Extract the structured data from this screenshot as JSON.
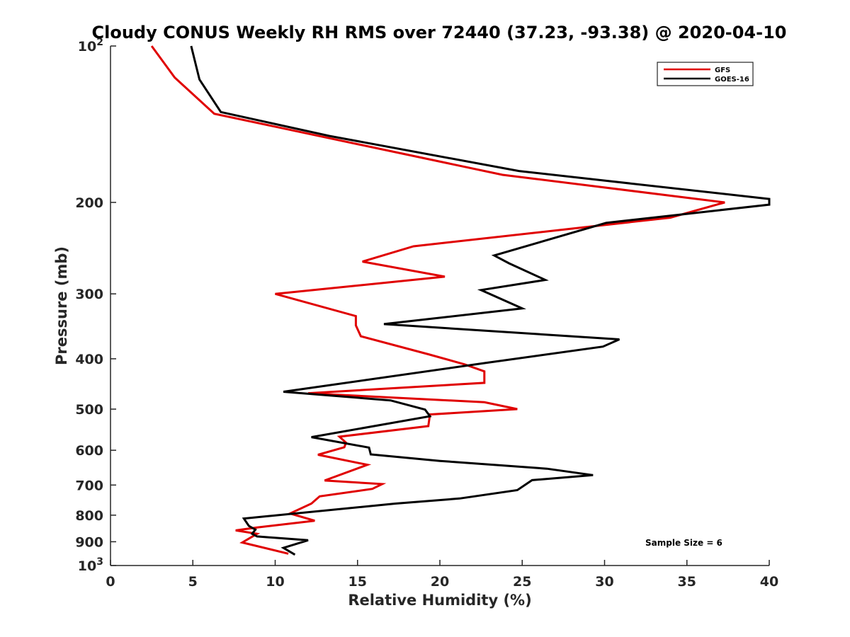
{
  "chart_data": {
    "type": "line",
    "title": "Cloudy CONUS Weekly RH RMS over 72440 (37.23, -93.38) @ 2020-04-10",
    "xlabel": "Relative Humidity (%)",
    "ylabel": "Pressure (mb)",
    "xlim": [
      0,
      40
    ],
    "ylim": [
      100,
      1000
    ],
    "y_scale": "log",
    "y_reversed": true,
    "grid": false,
    "legend_position": "top-right",
    "x_ticks": [
      0,
      5,
      10,
      15,
      20,
      25,
      30,
      35,
      40
    ],
    "y_ticks": [
      {
        "value": 100,
        "base": "10",
        "exp": "2"
      },
      {
        "value": 200,
        "label": "200"
      },
      {
        "value": 300,
        "label": "300"
      },
      {
        "value": 400,
        "label": "400"
      },
      {
        "value": 500,
        "label": "500"
      },
      {
        "value": 600,
        "label": "600"
      },
      {
        "value": 700,
        "label": "700"
      },
      {
        "value": 800,
        "label": "800"
      },
      {
        "value": 900,
        "label": "900"
      },
      {
        "value": 1000,
        "base": "10",
        "exp": "3"
      }
    ],
    "series": [
      {
        "name": "GFS",
        "color": "#e00000",
        "points": [
          {
            "x": 2.5,
            "p": 100
          },
          {
            "x": 3.9,
            "p": 115
          },
          {
            "x": 6.3,
            "p": 135
          },
          {
            "x": 13.1,
            "p": 150
          },
          {
            "x": 23.8,
            "p": 177
          },
          {
            "x": 37.3,
            "p": 200
          },
          {
            "x": 34.0,
            "p": 214
          },
          {
            "x": 18.4,
            "p": 243
          },
          {
            "x": 15.3,
            "p": 260
          },
          {
            "x": 20.3,
            "p": 278
          },
          {
            "x": 10.0,
            "p": 300
          },
          {
            "x": 14.9,
            "p": 331
          },
          {
            "x": 14.9,
            "p": 345
          },
          {
            "x": 15.2,
            "p": 362
          },
          {
            "x": 19.3,
            "p": 392
          },
          {
            "x": 21.5,
            "p": 410
          },
          {
            "x": 22.7,
            "p": 423
          },
          {
            "x": 22.7,
            "p": 445
          },
          {
            "x": 12.0,
            "p": 466
          },
          {
            "x": 22.7,
            "p": 485
          },
          {
            "x": 24.7,
            "p": 500
          },
          {
            "x": 19.4,
            "p": 512
          },
          {
            "x": 19.3,
            "p": 539
          },
          {
            "x": 13.9,
            "p": 565
          },
          {
            "x": 14.3,
            "p": 580
          },
          {
            "x": 14.2,
            "p": 592
          },
          {
            "x": 12.6,
            "p": 612
          },
          {
            "x": 15.6,
            "p": 640
          },
          {
            "x": 13.0,
            "p": 686
          },
          {
            "x": 16.5,
            "p": 697
          },
          {
            "x": 15.9,
            "p": 712
          },
          {
            "x": 12.7,
            "p": 736
          },
          {
            "x": 12.2,
            "p": 760
          },
          {
            "x": 10.9,
            "p": 794
          },
          {
            "x": 12.4,
            "p": 820
          },
          {
            "x": 8.9,
            "p": 845
          },
          {
            "x": 7.6,
            "p": 856
          },
          {
            "x": 8.9,
            "p": 869
          },
          {
            "x": 8.0,
            "p": 903
          },
          {
            "x": 10.8,
            "p": 949
          }
        ]
      },
      {
        "name": "GOES-16",
        "color": "#000000",
        "points": [
          {
            "x": 4.9,
            "p": 100
          },
          {
            "x": 5.4,
            "p": 116
          },
          {
            "x": 6.7,
            "p": 134
          },
          {
            "x": 13.3,
            "p": 149
          },
          {
            "x": 24.8,
            "p": 174
          },
          {
            "x": 40.0,
            "p": 197
          },
          {
            "x": 40.0,
            "p": 202
          },
          {
            "x": 30.1,
            "p": 219
          },
          {
            "x": 23.3,
            "p": 253
          },
          {
            "x": 24.2,
            "p": 262
          },
          {
            "x": 26.4,
            "p": 282
          },
          {
            "x": 22.5,
            "p": 295
          },
          {
            "x": 25.0,
            "p": 320
          },
          {
            "x": 16.6,
            "p": 343
          },
          {
            "x": 30.9,
            "p": 367
          },
          {
            "x": 29.9,
            "p": 379
          },
          {
            "x": 22.9,
            "p": 407
          },
          {
            "x": 10.5,
            "p": 463
          },
          {
            "x": 17.0,
            "p": 481
          },
          {
            "x": 19.1,
            "p": 501
          },
          {
            "x": 19.4,
            "p": 516
          },
          {
            "x": 12.2,
            "p": 566
          },
          {
            "x": 15.7,
            "p": 593
          },
          {
            "x": 15.8,
            "p": 611
          },
          {
            "x": 20.0,
            "p": 629
          },
          {
            "x": 26.5,
            "p": 651
          },
          {
            "x": 29.3,
            "p": 670
          },
          {
            "x": 25.6,
            "p": 685
          },
          {
            "x": 24.7,
            "p": 716
          },
          {
            "x": 21.2,
            "p": 743
          },
          {
            "x": 17.3,
            "p": 760
          },
          {
            "x": 8.1,
            "p": 812
          },
          {
            "x": 8.4,
            "p": 839
          },
          {
            "x": 8.8,
            "p": 853
          },
          {
            "x": 8.6,
            "p": 869
          },
          {
            "x": 8.9,
            "p": 879
          },
          {
            "x": 12.0,
            "p": 894
          },
          {
            "x": 10.5,
            "p": 925
          },
          {
            "x": 11.2,
            "p": 953
          }
        ]
      }
    ],
    "legend": [
      {
        "label": "GFS",
        "color": "#e00000"
      },
      {
        "label": "GOES-16",
        "color": "#000000"
      }
    ],
    "annotation": "Sample Size = 6"
  }
}
